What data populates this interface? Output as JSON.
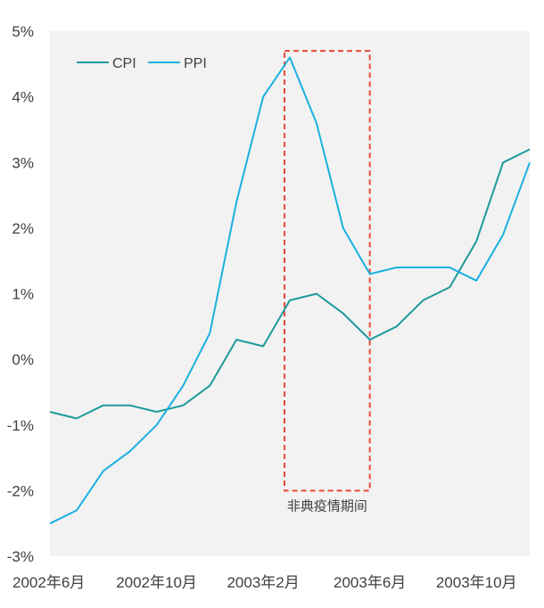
{
  "chart_data": {
    "type": "line",
    "x": [
      "2002-06",
      "2002-07",
      "2002-08",
      "2002-09",
      "2002-10",
      "2002-11",
      "2002-12",
      "2003-01",
      "2003-02",
      "2003-03",
      "2003-04",
      "2003-05",
      "2003-06",
      "2003-07",
      "2003-08",
      "2003-09",
      "2003-10",
      "2003-11",
      "2003-12"
    ],
    "x_tick_labels": [
      "2002年6月",
      "2002年10月",
      "2003年2月",
      "2003年6月",
      "2003年10月"
    ],
    "x_tick_values": [
      "2002-06",
      "2002-10",
      "2003-02",
      "2003-06",
      "2003-10"
    ],
    "y_tick_labels": [
      "5%",
      "4%",
      "3%",
      "2%",
      "1%",
      "0%",
      "-1%",
      "-2%",
      "-3%"
    ],
    "y_tick_values": [
      5,
      4,
      3,
      2,
      1,
      0,
      -1,
      -2,
      -3
    ],
    "ylim": [
      -3,
      5
    ],
    "xlim": [
      "2002-06",
      "2003-12"
    ],
    "series": [
      {
        "name": "CPI",
        "color": "#1e9a9a",
        "values": [
          -0.8,
          -0.9,
          -0.7,
          -0.7,
          -0.8,
          -0.7,
          -0.4,
          0.3,
          0.2,
          0.9,
          1.0,
          0.7,
          0.3,
          0.5,
          0.9,
          1.1,
          1.8,
          3.0,
          3.2
        ]
      },
      {
        "name": "PPI",
        "color": "#1ab0e0",
        "values": [
          -2.5,
          -2.3,
          -1.7,
          -1.4,
          -1.0,
          -0.4,
          0.4,
          2.4,
          4.0,
          4.6,
          3.6,
          2.0,
          1.3,
          1.4,
          1.4,
          1.4,
          1.2,
          1.9,
          3.0
        ]
      }
    ],
    "annotation": {
      "label": "非典疫情期间",
      "x_start": "2003-03",
      "x_end": "2003-06",
      "y_top": 4.7,
      "y_bottom": -2.0,
      "color": "#e84a3c"
    },
    "legend_placement": "top-left",
    "grid": false,
    "plot_background": "#f2f2f2",
    "title": "",
    "xlabel": "",
    "ylabel": ""
  }
}
